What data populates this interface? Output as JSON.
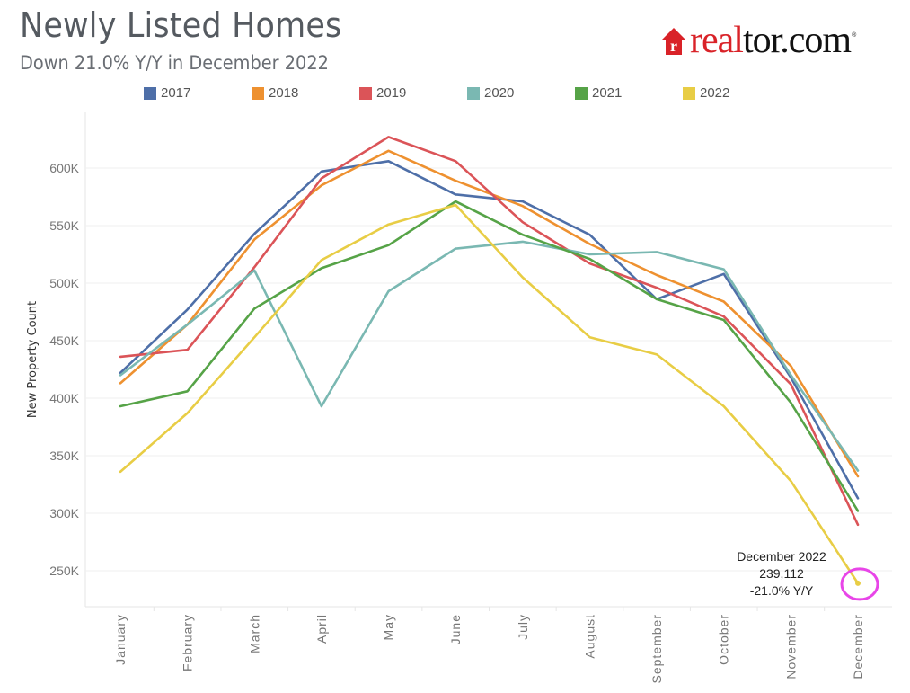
{
  "header": {
    "title": "Newly Listed Homes",
    "subtitle": "Down 21.0% Y/Y in December 2022"
  },
  "logo": {
    "part_red": "real",
    "part_black": "tor.com",
    "registered": "®",
    "brand_red": "#d92228"
  },
  "chart_data": {
    "type": "line",
    "title": "Newly Listed Homes",
    "subtitle": "Down 21.0% Y/Y in December 2022",
    "xlabel": "",
    "ylabel": "New Property Count",
    "categories": [
      "January",
      "February",
      "March",
      "April",
      "May",
      "June",
      "July",
      "August",
      "September",
      "October",
      "November",
      "December"
    ],
    "ylim": [
      215000,
      645000
    ],
    "yticks": [
      250000,
      300000,
      350000,
      400000,
      450000,
      500000,
      550000,
      600000
    ],
    "ytick_labels": [
      "250K",
      "300K",
      "350K",
      "400K",
      "450K",
      "500K",
      "550K",
      "600K"
    ],
    "grid": true,
    "legend_position": "top",
    "series": [
      {
        "name": "2017",
        "color": "#4e6fa8",
        "values": [
          422000,
          477000,
          543000,
          597000,
          606000,
          577000,
          571000,
          542000,
          486000,
          508000,
          418000,
          313000
        ]
      },
      {
        "name": "2018",
        "color": "#ee9130",
        "values": [
          413000,
          464000,
          538000,
          585000,
          615000,
          589000,
          567000,
          534000,
          507000,
          484000,
          428000,
          332000
        ]
      },
      {
        "name": "2019",
        "color": "#db5458",
        "values": [
          436000,
          442000,
          514000,
          591000,
          627000,
          606000,
          553000,
          517000,
          496000,
          471000,
          412000,
          290000
        ]
      },
      {
        "name": "2020",
        "color": "#7ab8b2",
        "values": [
          420000,
          464000,
          511000,
          393000,
          493000,
          530000,
          536000,
          525000,
          527000,
          512000,
          420000,
          337000
        ]
      },
      {
        "name": "2021",
        "color": "#56a347",
        "values": [
          393000,
          406000,
          478000,
          513000,
          533000,
          571000,
          542000,
          521000,
          486000,
          468000,
          396000,
          302000
        ]
      },
      {
        "name": "2022",
        "color": "#e8cd45",
        "values": [
          336000,
          387000,
          453000,
          520000,
          551000,
          568000,
          505000,
          453000,
          438000,
          393000,
          328000,
          239112
        ]
      }
    ],
    "annotation": {
      "lines": [
        "December 2022",
        "239,112",
        "-21.0% Y/Y"
      ],
      "series": "2022",
      "category": "December",
      "highlight_color": "#e845e8"
    }
  }
}
